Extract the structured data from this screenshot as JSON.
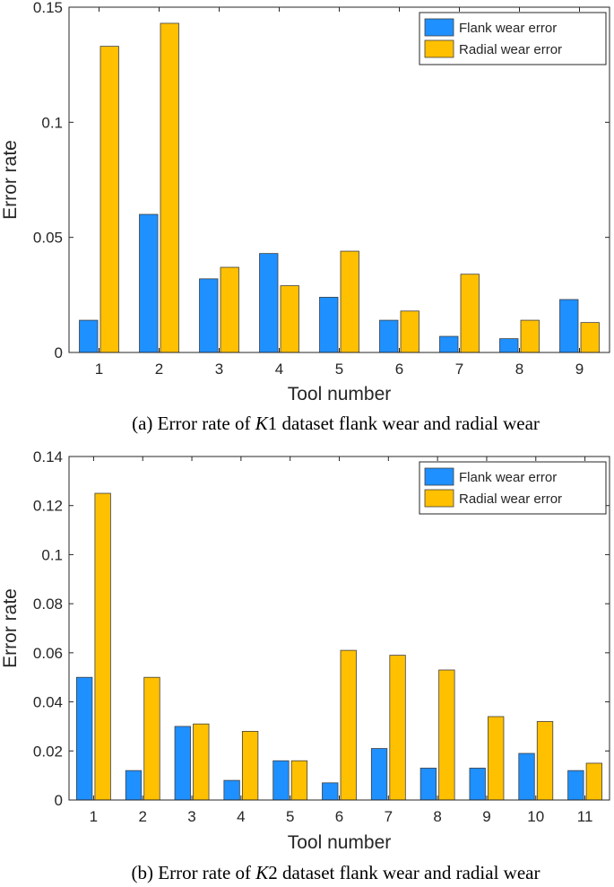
{
  "colors": {
    "flank": "#1E90FF",
    "radial": "#FFC000",
    "bar_edge": "#404040",
    "axis": "#262626"
  },
  "chart_data": [
    {
      "type": "bar",
      "categories": [
        "1",
        "2",
        "3",
        "4",
        "5",
        "6",
        "7",
        "8",
        "9"
      ],
      "series": [
        {
          "name": "Flank wear error",
          "values": [
            0.014,
            0.06,
            0.032,
            0.043,
            0.024,
            0.014,
            0.007,
            0.006,
            0.023
          ]
        },
        {
          "name": "Radial wear error",
          "values": [
            0.133,
            0.143,
            0.037,
            0.029,
            0.044,
            0.018,
            0.034,
            0.014,
            0.013
          ]
        }
      ],
      "xlabel": "Tool number",
      "ylabel": "Error rate",
      "ylim": [
        0,
        0.15
      ],
      "yticks": [
        "0",
        "0.05",
        "0.1",
        "0.15"
      ],
      "legend_position": "top-right",
      "grid": false,
      "caption": {
        "pre": "(a) Error rate of ",
        "italic": "K",
        "post": "1  dataset flank wear and radial wear"
      }
    },
    {
      "type": "bar",
      "categories": [
        "1",
        "2",
        "3",
        "4",
        "5",
        "6",
        "7",
        "8",
        "9",
        "10",
        "11"
      ],
      "series": [
        {
          "name": "Flank wear error",
          "values": [
            0.05,
            0.012,
            0.03,
            0.008,
            0.016,
            0.007,
            0.021,
            0.013,
            0.013,
            0.019,
            0.012
          ]
        },
        {
          "name": "Radial wear error",
          "values": [
            0.125,
            0.05,
            0.031,
            0.028,
            0.016,
            0.061,
            0.059,
            0.053,
            0.034,
            0.032,
            0.015
          ]
        }
      ],
      "xlabel": "Tool number",
      "ylabel": "Error rate",
      "ylim": [
        0,
        0.14
      ],
      "yticks": [
        "0",
        "0.02",
        "0.04",
        "0.06",
        "0.08",
        "0.1",
        "0.12",
        "0.14"
      ],
      "legend_position": "top-right",
      "grid": false,
      "caption": {
        "pre": "(b) Error rate of ",
        "italic": "K",
        "post": "2  dataset flank wear and radial wear"
      }
    }
  ]
}
